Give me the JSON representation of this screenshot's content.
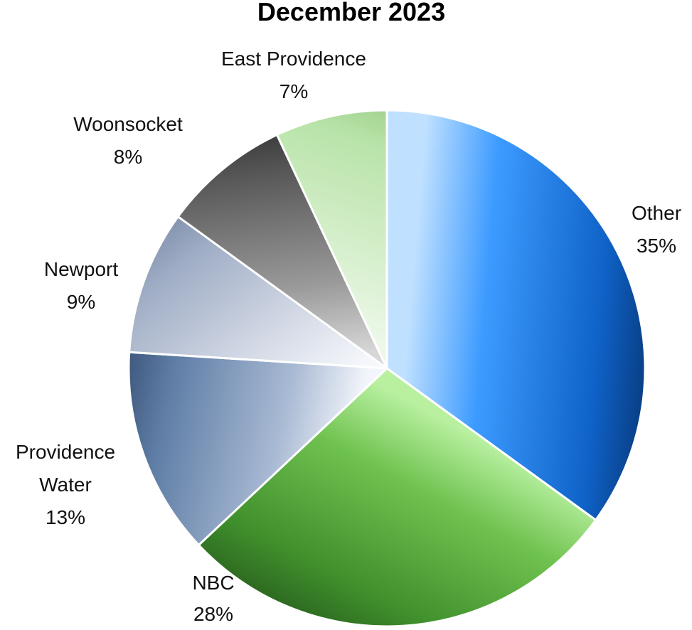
{
  "chart_data": {
    "type": "pie",
    "title": "December 2023",
    "start_angle_deg": 0,
    "direction": "clockwise",
    "slices": [
      {
        "name": "Other",
        "value": 35,
        "label": "Other",
        "label_lines": [
          "Other"
        ],
        "percent": "35%",
        "colors": [
          "#bfe0ff",
          "#3d9bff",
          "#0f62c8",
          "#062e66"
        ]
      },
      {
        "name": "NBC",
        "value": 28,
        "label": "NBC",
        "label_lines": [
          "NBC"
        ],
        "percent": "28%",
        "colors": [
          "#b8f0a0",
          "#6fc24f",
          "#3f8f2c",
          "#25591b"
        ]
      },
      {
        "name": "Providence Water",
        "value": 13,
        "label": "Providence Water",
        "label_lines": [
          "Providence",
          "Water"
        ],
        "percent": "13%",
        "colors": [
          "#f2f5fb",
          "#a8b9d3",
          "#5f7ea6",
          "#2d4368"
        ]
      },
      {
        "name": "Newport",
        "value": 9,
        "label": "Newport",
        "label_lines": [
          "Newport"
        ],
        "percent": "9%",
        "colors": [
          "#f5f7fb",
          "#d6dbe7",
          "#9fadc5",
          "#6f7f9e"
        ]
      },
      {
        "name": "Woonsocket",
        "value": 8,
        "label": "Woonsocket",
        "label_lines": [
          "Woonsocket"
        ],
        "percent": "8%",
        "colors": [
          "#d7d7d7",
          "#9a9a9a",
          "#585858",
          "#262626"
        ]
      },
      {
        "name": "East Providence",
        "value": 7,
        "label": "East Providence",
        "label_lines": [
          "East Providence"
        ],
        "percent": "7%",
        "colors": [
          "#eef8ea",
          "#d8f0cf",
          "#b8e3a8",
          "#8cc377"
        ]
      }
    ]
  }
}
